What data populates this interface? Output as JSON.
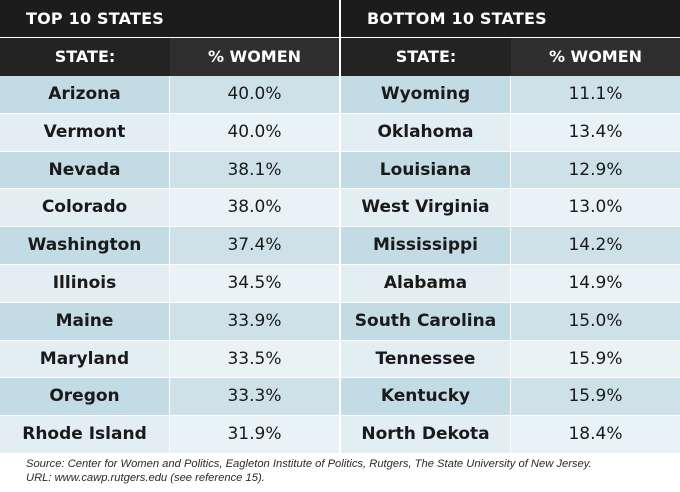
{
  "left_panel": {
    "title": "TOP 10 STATES",
    "header_state": "STATE:",
    "header_pct": "% WOMEN",
    "rows": [
      {
        "state": "Arizona",
        "pct": "40.0%"
      },
      {
        "state": "Vermont",
        "pct": "40.0%"
      },
      {
        "state": "Nevada",
        "pct": "38.1%"
      },
      {
        "state": "Colorado",
        "pct": "38.0%"
      },
      {
        "state": "Washington",
        "pct": "37.4%"
      },
      {
        "state": "Illinois",
        "pct": "34.5%"
      },
      {
        "state": "Maine",
        "pct": "33.9%"
      },
      {
        "state": "Maryland",
        "pct": "33.5%"
      },
      {
        "state": "Oregon",
        "pct": "33.3%"
      },
      {
        "state": "Rhode Island",
        "pct": "31.9%"
      }
    ]
  },
  "right_panel": {
    "title": "BOTTOM 10 STATES",
    "header_state": "STATE:",
    "header_pct": "% WOMEN",
    "rows": [
      {
        "state": "Wyoming",
        "pct": "11.1%"
      },
      {
        "state": "Oklahoma",
        "pct": "13.4%"
      },
      {
        "state": "Louisiana",
        "pct": "12.9%"
      },
      {
        "state": "West Virginia",
        "pct": "13.0%"
      },
      {
        "state": "Mississippi",
        "pct": "14.2%"
      },
      {
        "state": "Alabama",
        "pct": "14.9%"
      },
      {
        "state": "South Carolina",
        "pct": "15.0%"
      },
      {
        "state": "Tennessee",
        "pct": "15.9%"
      },
      {
        "state": "Kentucky",
        "pct": "15.9%"
      },
      {
        "state": "North Dekota",
        "pct": "18.4%"
      }
    ]
  },
  "footer": {
    "source": "Source: Center for Women and Politics, Eagleton Institute of Politics, Rutgers, The State University of New Jersey.",
    "url": "URL: www.cawp.rutgers.edu (see reference 15)."
  },
  "colors": {
    "header_dark": "#1c1c1c",
    "row_blue": "#c3dbe4",
    "row_light": "#e3eef2"
  }
}
